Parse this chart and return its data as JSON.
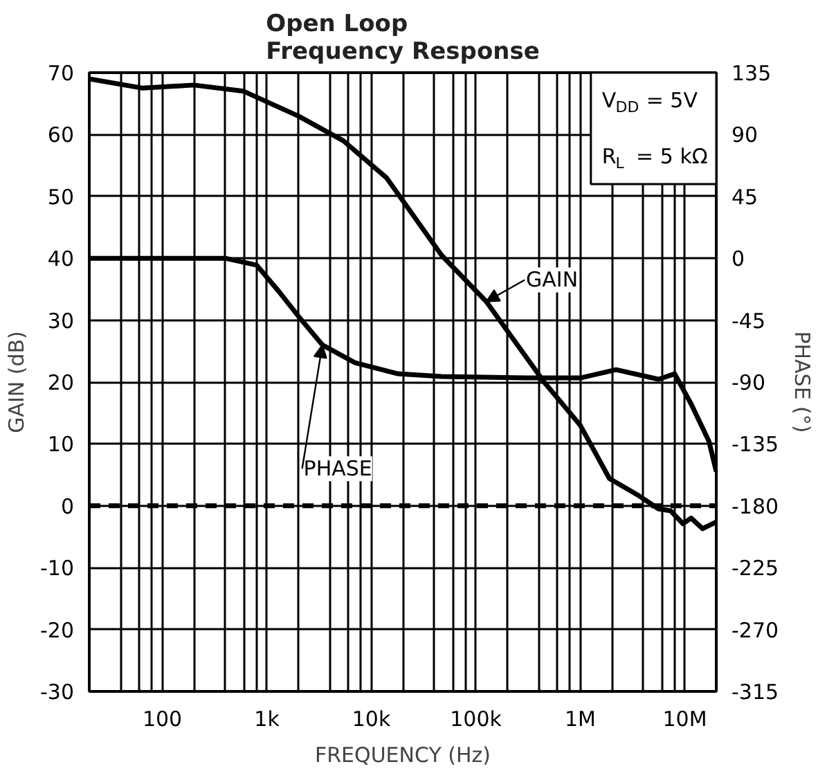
{
  "chart_data": {
    "type": "line",
    "title": "Open Loop\nFrequency Response",
    "xlabel": "FREQUENCY (Hz)",
    "ylabel": "GAIN (dB)",
    "y2label": "PHASE (°)",
    "log": "x",
    "grid": true,
    "marker": "none",
    "line_style": "solid",
    "xlim": [
      20,
      20000000
    ],
    "xticks": [
      {
        "value": 40,
        "label": null
      },
      {
        "value": 60,
        "label": null
      },
      {
        "value": 80,
        "label": null
      },
      {
        "value": 100,
        "label": "100"
      },
      {
        "value": 200,
        "label": null
      },
      {
        "value": 400,
        "label": null
      },
      {
        "value": 600,
        "label": null
      },
      {
        "value": 800,
        "label": null
      },
      {
        "value": 1000,
        "label": "1k"
      },
      {
        "value": 2000,
        "label": null
      },
      {
        "value": 4000,
        "label": null
      },
      {
        "value": 6000,
        "label": null
      },
      {
        "value": 8000,
        "label": null
      },
      {
        "value": 10000,
        "label": "10k"
      },
      {
        "value": 20000,
        "label": null
      },
      {
        "value": 40000,
        "label": null
      },
      {
        "value": 60000,
        "label": null
      },
      {
        "value": 80000,
        "label": null
      },
      {
        "value": 100000,
        "label": "100k"
      },
      {
        "value": 200000,
        "label": null
      },
      {
        "value": 400000,
        "label": null
      },
      {
        "value": 600000,
        "label": null
      },
      {
        "value": 800000,
        "label": null
      },
      {
        "value": 1000000,
        "label": "1M"
      },
      {
        "value": 2000000,
        "label": null
      },
      {
        "value": 4000000,
        "label": null
      },
      {
        "value": 6000000,
        "label": null
      },
      {
        "value": 8000000,
        "label": null
      },
      {
        "value": 10000000,
        "label": "10M"
      }
    ],
    "ylim": [
      -30,
      70
    ],
    "yticks": [
      -30,
      -20,
      -10,
      0,
      10,
      20,
      30,
      40,
      50,
      60,
      70
    ],
    "y2lim": [
      -315,
      135
    ],
    "y2ticks": [
      -315,
      -270,
      -225,
      -180,
      -135,
      -90,
      -45,
      0,
      45,
      90,
      135
    ],
    "series": [
      {
        "color": "#000000",
        "x": [
          20,
          65,
          200,
          600,
          2000,
          5400,
          14000,
          47000,
          126000,
          450000,
          1000000,
          1900000,
          3500000,
          5600000,
          7300000,
          9600000,
          11500000,
          14800000,
          20000000
        ],
        "values": [
          69,
          67.5,
          68,
          67,
          63,
          59,
          53,
          40.5,
          33,
          20,
          13,
          4.4,
          1.8,
          -0.5,
          -0.8,
          -2.9,
          -2,
          -3.7,
          -2.6
        ]
      },
      {
        "color": "#000000",
        "axis": "y2",
        "x": [
          20,
          400,
          800,
          1300,
          2000,
          3400,
          7000,
          18000,
          47000,
          300000,
          1000000,
          2200000,
          5600000,
          8000000,
          11500000,
          17000000,
          20000000
        ],
        "values": [
          0,
          0,
          -5,
          -24,
          -42,
          -63,
          -76,
          -84,
          -86,
          -87,
          -87,
          -81,
          -88,
          -84,
          -106,
          -133,
          -155
        ]
      }
    ],
    "ref_lines": [
      {
        "axis": "y",
        "value": 0,
        "label": null,
        "color": "#000000",
        "line_style": "dashed"
      }
    ],
    "annotations": [
      {
        "text": "GAIN",
        "x": 126000,
        "y": 33
      },
      {
        "text": "PHASE",
        "x": 3400,
        "y": 26
      },
      "V$_{DD}$ = 5V",
      "R$_{L}$ = 5 kΩ"
    ]
  }
}
